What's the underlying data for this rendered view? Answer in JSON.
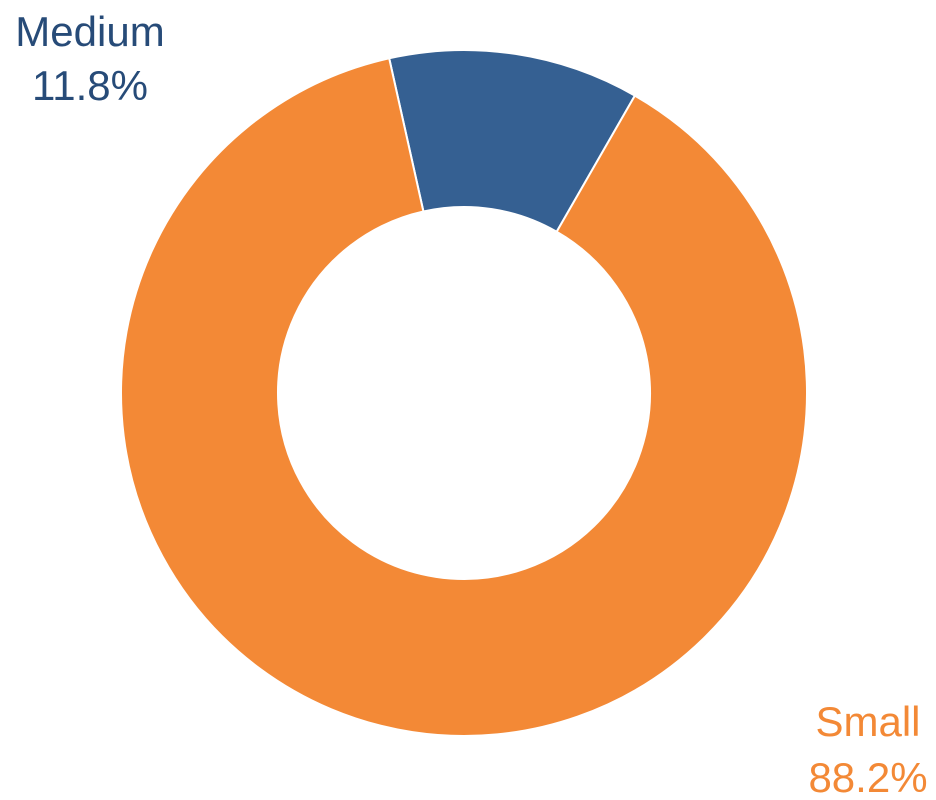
{
  "chart_data": {
    "type": "pie",
    "donut": true,
    "series": [
      {
        "name": "Medium",
        "value": 11.8,
        "label": "11.8%",
        "color": "#356092"
      },
      {
        "name": "Small",
        "value": 88.2,
        "label": "88.2%",
        "color": "#f38936"
      }
    ],
    "title": "",
    "legend": "none",
    "label_color": {
      "Medium": "#274b78",
      "Small": "#f38936"
    }
  }
}
